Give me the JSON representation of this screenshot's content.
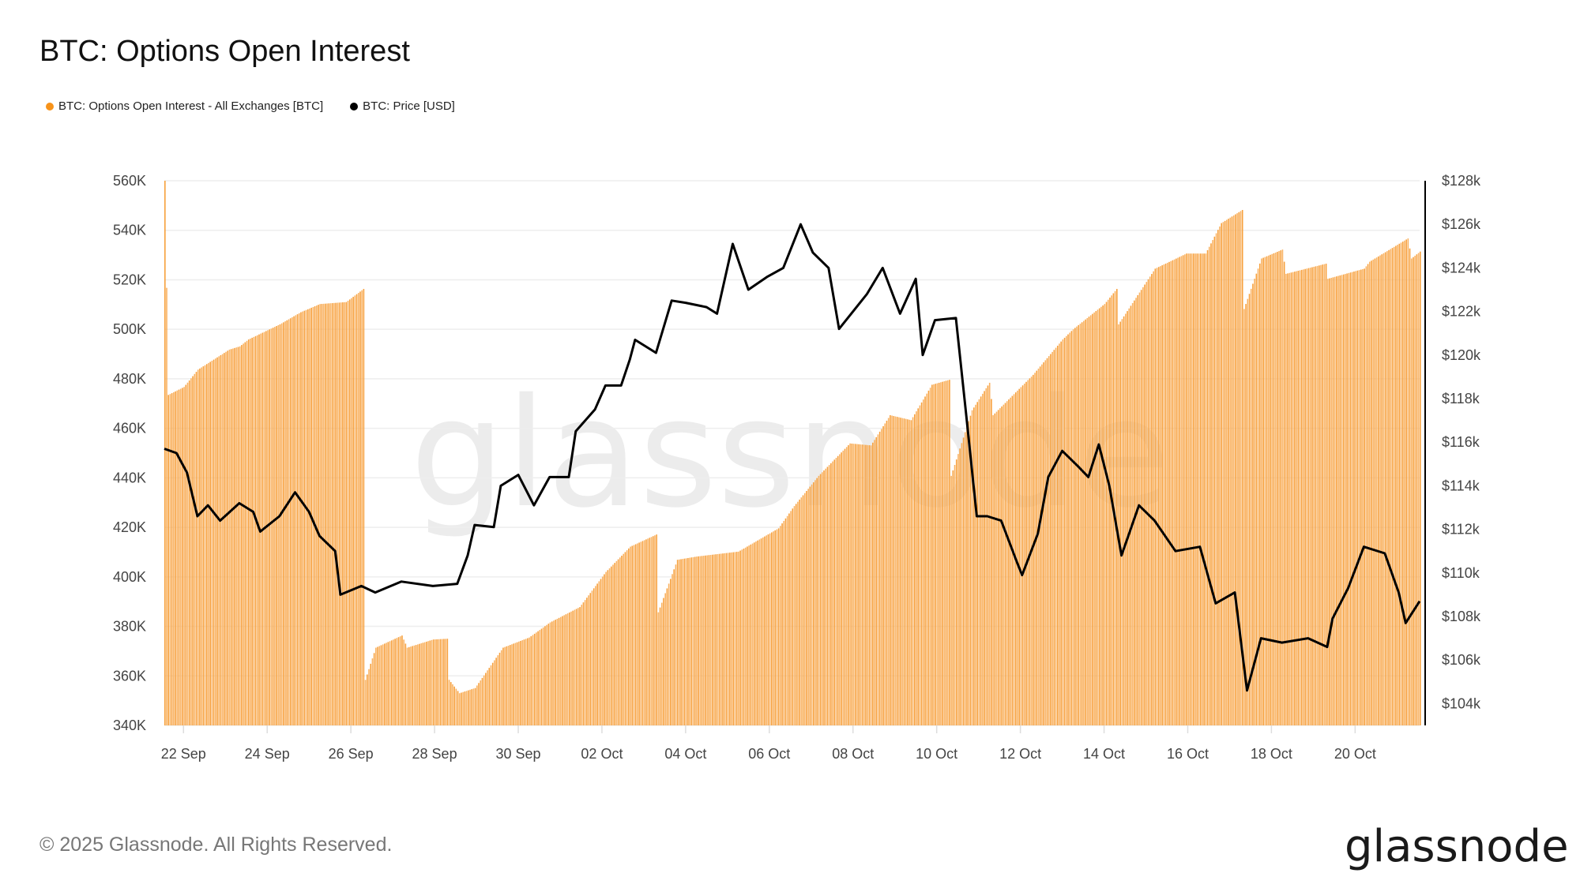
{
  "title": "BTC: Options Open Interest",
  "legend": [
    {
      "label": "BTC: Options Open Interest - All Exchanges [BTC]",
      "color": "#f7931a"
    },
    {
      "label": "BTC: Price [USD]",
      "color": "#000000"
    }
  ],
  "footer": "© 2025 Glassnode. All Rights Reserved.",
  "logo": "glassnode",
  "watermark": "glassnode",
  "chart_data": {
    "type": "bar+line",
    "title": "BTC: Options Open Interest",
    "x_ticks": [
      "22 Sep",
      "24 Sep",
      "26 Sep",
      "28 Sep",
      "30 Sep",
      "02 Oct",
      "04 Oct",
      "06 Oct",
      "08 Oct",
      "10 Oct",
      "12 Oct",
      "14 Oct",
      "16 Oct",
      "18 Oct",
      "20 Oct"
    ],
    "x_tick_dates": [
      "2025-09-22",
      "2025-09-24",
      "2025-09-26",
      "2025-09-28",
      "2025-09-30",
      "2025-10-02",
      "2025-10-04",
      "2025-10-06",
      "2025-10-08",
      "2025-10-10",
      "2025-10-12",
      "2025-10-14",
      "2025-10-16",
      "2025-10-18",
      "2025-10-20"
    ],
    "x_range": [
      "2025-09-21T13:00",
      "2025-10-21T13:00"
    ],
    "left_axis": {
      "ticks": [
        "340K",
        "360K",
        "380K",
        "400K",
        "420K",
        "440K",
        "460K",
        "480K",
        "500K",
        "520K",
        "540K",
        "560K"
      ],
      "range": [
        340000,
        560000
      ]
    },
    "right_axis": {
      "ticks": [
        "$104k",
        "$106k",
        "$108k",
        "$110k",
        "$112k",
        "$114k",
        "$116k",
        "$118k",
        "$120k",
        "$122k",
        "$124k",
        "$126k",
        "$128k"
      ],
      "range": [
        103000,
        128000
      ]
    },
    "grid": true,
    "legend_position": "top-left",
    "series": [
      {
        "name": "BTC: Options Open Interest - All Exchanges [BTC]",
        "type": "bar",
        "axis": "left",
        "color": "#f7931a",
        "points": [
          [
            "2025-09-21T13:00",
            560000
          ],
          [
            "2025-09-21T15:00",
            473500
          ],
          [
            "2025-09-22T00:00",
            476700
          ],
          [
            "2025-09-22T08:00",
            483700
          ],
          [
            "2025-09-23T02:00",
            491800
          ],
          [
            "2025-09-23T08:00",
            493100
          ],
          [
            "2025-09-23T13:00",
            495900
          ],
          [
            "2025-09-24T07:00",
            502000
          ],
          [
            "2025-09-24T19:00",
            506900
          ],
          [
            "2025-09-25T06:00",
            510200
          ],
          [
            "2025-09-25T21:00",
            511000
          ],
          [
            "2025-09-26T07:00",
            516300
          ],
          [
            "2025-09-26T08:00",
            358400
          ],
          [
            "2025-09-26T14:00",
            371400
          ],
          [
            "2025-09-27T05:00",
            376300
          ],
          [
            "2025-09-27T08:00",
            371400
          ],
          [
            "2025-09-27T23:00",
            374700
          ],
          [
            "2025-09-28T07:00",
            375000
          ],
          [
            "2025-09-28T08:00",
            358400
          ],
          [
            "2025-09-28T14:00",
            353000
          ],
          [
            "2025-09-28T23:00",
            355100
          ],
          [
            "2025-09-29T15:00",
            371400
          ],
          [
            "2025-09-30T06:00",
            375500
          ],
          [
            "2025-09-30T18:00",
            381600
          ],
          [
            "2025-10-01T11:00",
            387800
          ],
          [
            "2025-10-02T02:00",
            402000
          ],
          [
            "2025-10-02T16:00",
            412200
          ],
          [
            "2025-10-03T07:00",
            417100
          ],
          [
            "2025-10-03T08:00",
            385700
          ],
          [
            "2025-10-03T19:00",
            406900
          ],
          [
            "2025-10-04T06:00",
            408200
          ],
          [
            "2025-10-05T06:00",
            410200
          ],
          [
            "2025-10-06T05:00",
            419600
          ],
          [
            "2025-10-06T14:00",
            428600
          ],
          [
            "2025-10-07T04:00",
            440800
          ],
          [
            "2025-10-07T22:00",
            453900
          ],
          [
            "2025-10-08T10:00",
            453100
          ],
          [
            "2025-10-08T21:00",
            465300
          ],
          [
            "2025-10-09T09:00",
            463300
          ],
          [
            "2025-10-09T21:00",
            477600
          ],
          [
            "2025-10-10T07:00",
            479600
          ],
          [
            "2025-10-10T08:00",
            440800
          ],
          [
            "2025-10-10T20:00",
            467300
          ],
          [
            "2025-10-11T06:00",
            478400
          ],
          [
            "2025-10-11T08:00",
            465300
          ],
          [
            "2025-10-12T07:00",
            481600
          ],
          [
            "2025-10-13T00:00",
            495900
          ],
          [
            "2025-10-13T06:00",
            500000
          ],
          [
            "2025-10-14T00:00",
            510200
          ],
          [
            "2025-10-14T07:00",
            516300
          ],
          [
            "2025-10-14T08:00",
            502000
          ],
          [
            "2025-10-15T05:00",
            524500
          ],
          [
            "2025-10-15T23:00",
            530600
          ],
          [
            "2025-10-16T10:00",
            530600
          ],
          [
            "2025-10-16T19:00",
            542900
          ],
          [
            "2025-10-17T07:00",
            548200
          ],
          [
            "2025-10-17T08:00",
            508200
          ],
          [
            "2025-10-17T18:00",
            528600
          ],
          [
            "2025-10-18T06:00",
            532200
          ],
          [
            "2025-10-18T08:00",
            522400
          ],
          [
            "2025-10-19T07:00",
            526500
          ],
          [
            "2025-10-19T08:00",
            520400
          ],
          [
            "2025-10-20T05:00",
            524500
          ],
          [
            "2025-10-20T08:00",
            527300
          ],
          [
            "2025-10-21T06:00",
            536700
          ],
          [
            "2025-10-21T08:00",
            528600
          ],
          [
            "2025-10-21T13:00",
            531400
          ]
        ]
      },
      {
        "name": "BTC: Price [USD]",
        "type": "line",
        "axis": "right",
        "color": "#000000",
        "points": [
          [
            "2025-09-21T13:00",
            115700
          ],
          [
            "2025-09-21T20:00",
            115500
          ],
          [
            "2025-09-22T02:00",
            114600
          ],
          [
            "2025-09-22T08:00",
            112600
          ],
          [
            "2025-09-22T14:00",
            113100
          ],
          [
            "2025-09-22T21:00",
            112400
          ],
          [
            "2025-09-23T08:00",
            113200
          ],
          [
            "2025-09-23T16:00",
            112800
          ],
          [
            "2025-09-23T20:00",
            111900
          ],
          [
            "2025-09-24T07:00",
            112600
          ],
          [
            "2025-09-24T16:00",
            113700
          ],
          [
            "2025-09-25T00:00",
            112800
          ],
          [
            "2025-09-25T06:00",
            111700
          ],
          [
            "2025-09-25T15:00",
            111000
          ],
          [
            "2025-09-25T18:00",
            109000
          ],
          [
            "2025-09-26T06:00",
            109400
          ],
          [
            "2025-09-26T14:00",
            109100
          ],
          [
            "2025-09-27T05:00",
            109600
          ],
          [
            "2025-09-27T23:00",
            109400
          ],
          [
            "2025-09-28T13:00",
            109500
          ],
          [
            "2025-09-28T19:00",
            110800
          ],
          [
            "2025-09-28T23:00",
            112200
          ],
          [
            "2025-09-29T10:00",
            112100
          ],
          [
            "2025-09-29T14:00",
            114000
          ],
          [
            "2025-09-30T00:00",
            114500
          ],
          [
            "2025-09-30T09:00",
            113100
          ],
          [
            "2025-09-30T18:00",
            114400
          ],
          [
            "2025-10-01T05:00",
            114400
          ],
          [
            "2025-10-01T09:00",
            116500
          ],
          [
            "2025-10-01T20:00",
            117500
          ],
          [
            "2025-10-02T02:00",
            118600
          ],
          [
            "2025-10-02T11:00",
            118600
          ],
          [
            "2025-10-02T16:00",
            119800
          ],
          [
            "2025-10-02T19:00",
            120700
          ],
          [
            "2025-10-03T07:00",
            120100
          ],
          [
            "2025-10-03T16:00",
            122500
          ],
          [
            "2025-10-04T00:00",
            122400
          ],
          [
            "2025-10-04T12:00",
            122200
          ],
          [
            "2025-10-04T18:00",
            121900
          ],
          [
            "2025-10-05T03:00",
            125100
          ],
          [
            "2025-10-05T12:00",
            123000
          ],
          [
            "2025-10-05T23:00",
            123600
          ],
          [
            "2025-10-06T08:00",
            124000
          ],
          [
            "2025-10-06T18:00",
            126000
          ],
          [
            "2025-10-07T01:00",
            124700
          ],
          [
            "2025-10-07T10:00",
            124000
          ],
          [
            "2025-10-07T16:00",
            121200
          ],
          [
            "2025-10-08T01:00",
            122100
          ],
          [
            "2025-10-08T08:00",
            122800
          ],
          [
            "2025-10-08T17:00",
            124000
          ],
          [
            "2025-10-09T03:00",
            121900
          ],
          [
            "2025-10-09T12:00",
            123500
          ],
          [
            "2025-10-09T16:00",
            120000
          ],
          [
            "2025-10-09T23:00",
            121600
          ],
          [
            "2025-10-10T11:00",
            121700
          ],
          [
            "2025-10-10T17:00",
            117200
          ],
          [
            "2025-10-10T23:00",
            112600
          ],
          [
            "2025-10-11T05:00",
            112600
          ],
          [
            "2025-10-11T13:00",
            112400
          ],
          [
            "2025-10-11T22:00",
            110500
          ],
          [
            "2025-10-12T01:00",
            109900
          ],
          [
            "2025-10-12T10:00",
            111800
          ],
          [
            "2025-10-12T16:00",
            114400
          ],
          [
            "2025-10-13T00:00",
            115600
          ],
          [
            "2025-10-13T09:00",
            114900
          ],
          [
            "2025-10-13T15:00",
            114400
          ],
          [
            "2025-10-13T21:00",
            115900
          ],
          [
            "2025-10-14T03:00",
            114000
          ],
          [
            "2025-10-14T10:00",
            110800
          ],
          [
            "2025-10-14T20:00",
            113100
          ],
          [
            "2025-10-15T05:00",
            112400
          ],
          [
            "2025-10-15T17:00",
            111000
          ],
          [
            "2025-10-16T07:00",
            111200
          ],
          [
            "2025-10-16T16:00",
            108600
          ],
          [
            "2025-10-17T03:00",
            109100
          ],
          [
            "2025-10-17T10:00",
            104600
          ],
          [
            "2025-10-17T18:00",
            107000
          ],
          [
            "2025-10-18T06:00",
            106800
          ],
          [
            "2025-10-18T21:00",
            107000
          ],
          [
            "2025-10-19T08:00",
            106600
          ],
          [
            "2025-10-19T11:00",
            107900
          ],
          [
            "2025-10-19T20:00",
            109300
          ],
          [
            "2025-10-20T05:00",
            111200
          ],
          [
            "2025-10-20T17:00",
            110900
          ],
          [
            "2025-10-21T01:00",
            109100
          ],
          [
            "2025-10-21T05:00",
            107700
          ],
          [
            "2025-10-21T13:00",
            108700
          ]
        ]
      }
    ]
  }
}
